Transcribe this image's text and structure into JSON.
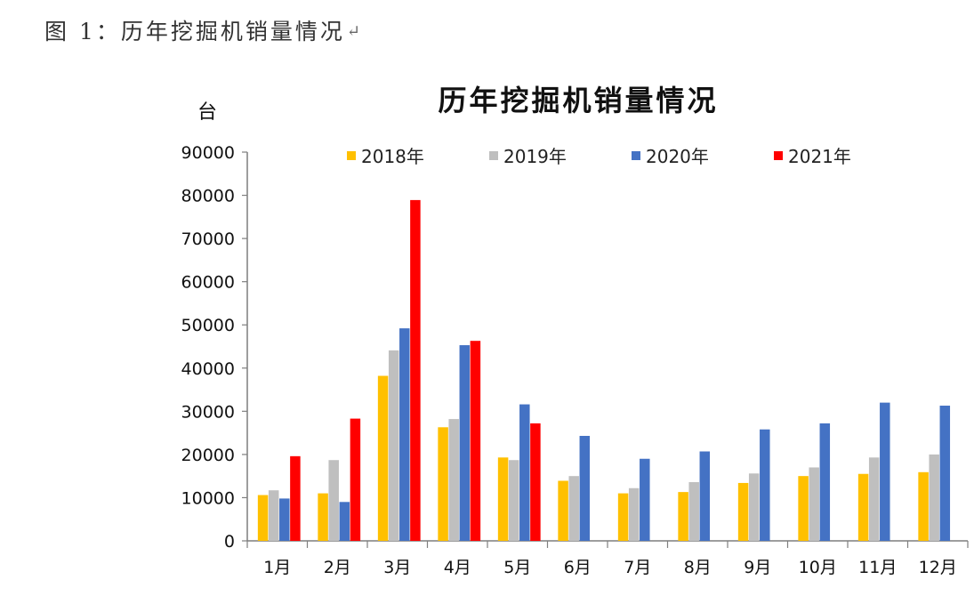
{
  "caption": "图 1：历年挖掘机销量情况",
  "caption_return_mark": "↵",
  "chart_data": {
    "type": "bar",
    "title": "历年挖掘机销量情况",
    "ylabel": "台",
    "xlabel": "",
    "ylim": [
      0,
      90000
    ],
    "yticks": [
      0,
      10000,
      20000,
      30000,
      40000,
      50000,
      60000,
      70000,
      80000,
      90000
    ],
    "grid": false,
    "legend_position": "top",
    "categories": [
      "1月",
      "2月",
      "3月",
      "4月",
      "5月",
      "6月",
      "7月",
      "8月",
      "9月",
      "10月",
      "11月",
      "12月"
    ],
    "series": [
      {
        "name": "2018年",
        "color": "#FFC000",
        "values": [
          10600,
          11000,
          38200,
          26300,
          19300,
          13900,
          11000,
          11300,
          13400,
          15000,
          15500,
          15900
        ]
      },
      {
        "name": "2019年",
        "color": "#BFBFBF",
        "values": [
          11700,
          18700,
          44100,
          28200,
          18700,
          15000,
          12200,
          13600,
          15600,
          17000,
          19300,
          20000
        ]
      },
      {
        "name": "2020年",
        "color": "#4472C4",
        "values": [
          9800,
          9000,
          49200,
          45300,
          31600,
          24300,
          19000,
          20700,
          25800,
          27200,
          32000,
          31300
        ]
      },
      {
        "name": "2021年",
        "color": "#FF0000",
        "values": [
          19600,
          28300,
          78900,
          46300,
          27200,
          null,
          null,
          null,
          null,
          null,
          null,
          null
        ]
      }
    ]
  }
}
